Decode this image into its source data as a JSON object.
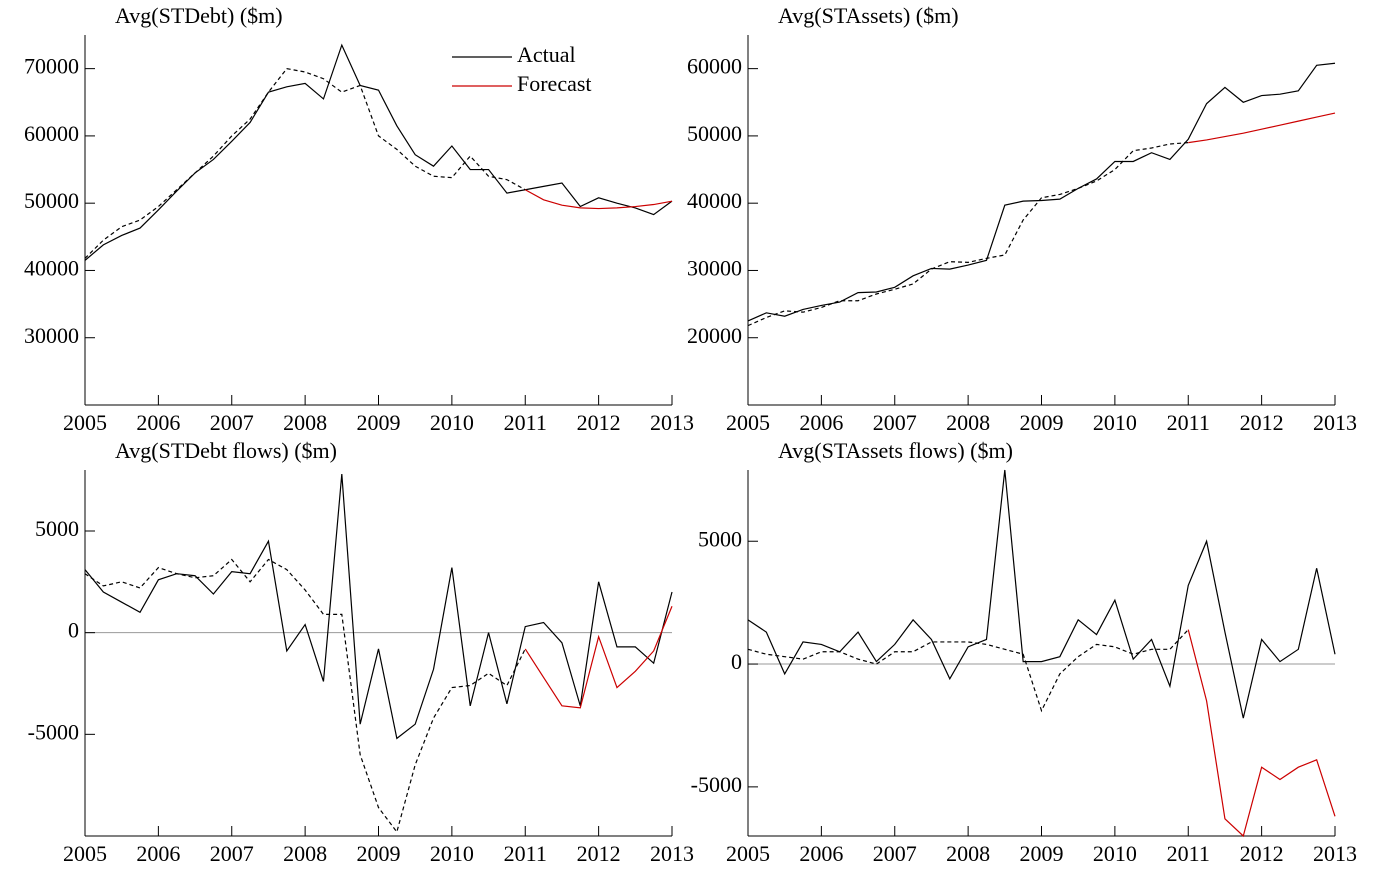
{
  "chart_data": [
    {
      "type": "line",
      "title": "Avg(STDebt) ($m)",
      "x": [
        2005,
        2005.25,
        2005.5,
        2005.75,
        2006,
        2006.25,
        2006.5,
        2006.75,
        2007,
        2007.25,
        2007.5,
        2007.75,
        2008,
        2008.25,
        2008.5,
        2008.75,
        2009,
        2009.25,
        2009.5,
        2009.75,
        2010,
        2010.25,
        2010.5,
        2010.75,
        2011,
        2011.25,
        2011.5,
        2011.75,
        2012,
        2012.25,
        2012.5,
        2012.75,
        2013
      ],
      "xlim": [
        2005,
        2013
      ],
      "xticks": [
        2005,
        2006,
        2007,
        2008,
        2009,
        2010,
        2011,
        2012,
        2013
      ],
      "ylim": [
        20000,
        75000
      ],
      "yticks": [
        30000,
        40000,
        50000,
        60000,
        70000
      ],
      "legend": "top-right",
      "series": [
        {
          "name": "Actual",
          "color": "#000000",
          "values": [
            41500,
            43800,
            45200,
            46300,
            49000,
            51800,
            54500,
            56500,
            59200,
            62000,
            66500,
            67300,
            67800,
            65500,
            73500,
            67500,
            66800,
            61500,
            57200,
            55500,
            58500,
            55000,
            55000,
            51500,
            52000,
            52500,
            53000,
            49500,
            50800,
            50000,
            49300,
            48300,
            50300
          ]
        },
        {
          "color": "#000000",
          "dash": true,
          "values": [
            41800,
            44500,
            46500,
            47500,
            49500,
            52000,
            54500,
            57000,
            60000,
            62500,
            66500,
            70000,
            69500,
            68500,
            66500,
            67500,
            60000,
            58000,
            55500,
            54000,
            53800,
            57000,
            54000,
            53500,
            52000,
            null,
            null,
            null,
            null,
            null,
            null,
            null,
            null
          ]
        },
        {
          "name": "Forecast",
          "color": "#cc0000",
          "values": [
            null,
            null,
            null,
            null,
            null,
            null,
            null,
            null,
            null,
            null,
            null,
            null,
            null,
            null,
            null,
            null,
            null,
            null,
            null,
            null,
            null,
            null,
            null,
            null,
            52000,
            50500,
            49700,
            49300,
            49200,
            49300,
            49500,
            49800,
            50300
          ]
        }
      ]
    },
    {
      "type": "line",
      "title": "Avg(STAssets) ($m)",
      "x": [
        2005,
        2005.25,
        2005.5,
        2005.75,
        2006,
        2006.25,
        2006.5,
        2006.75,
        2007,
        2007.25,
        2007.5,
        2007.75,
        2008,
        2008.25,
        2008.5,
        2008.75,
        2009,
        2009.25,
        2009.5,
        2009.75,
        2010,
        2010.25,
        2010.5,
        2010.75,
        2011,
        2011.25,
        2011.5,
        2011.75,
        2012,
        2012.25,
        2012.5,
        2012.75,
        2013
      ],
      "xlim": [
        2005,
        2013
      ],
      "xticks": [
        2005,
        2006,
        2007,
        2008,
        2009,
        2010,
        2011,
        2012,
        2013
      ],
      "ylim": [
        10000,
        65000
      ],
      "yticks": [
        20000,
        30000,
        40000,
        50000,
        60000
      ],
      "series": [
        {
          "color": "#000000",
          "values": [
            22500,
            23700,
            23200,
            24200,
            24800,
            25300,
            26700,
            26800,
            27500,
            29200,
            30300,
            30200,
            30800,
            31500,
            39700,
            40300,
            40400,
            40600,
            42200,
            43600,
            46200,
            46200,
            47500,
            46500,
            49500,
            54800,
            57200,
            55000,
            56000,
            56200,
            56700,
            60500,
            60800
          ]
        },
        {
          "color": "#000000",
          "dash": true,
          "values": [
            21800,
            23000,
            24000,
            23800,
            24500,
            25500,
            25500,
            26500,
            27200,
            28000,
            30200,
            31300,
            31200,
            31800,
            32300,
            37500,
            40800,
            41300,
            42200,
            43300,
            45000,
            47800,
            48200,
            48800,
            49000,
            null,
            null,
            null,
            null,
            null,
            null,
            null,
            null
          ]
        },
        {
          "color": "#cc0000",
          "values": [
            null,
            null,
            null,
            null,
            null,
            null,
            null,
            null,
            null,
            null,
            null,
            null,
            null,
            null,
            null,
            null,
            null,
            null,
            null,
            null,
            null,
            null,
            null,
            null,
            49000,
            49400,
            49900,
            50400,
            51000,
            51600,
            52200,
            52800,
            53400
          ]
        }
      ]
    },
    {
      "type": "line",
      "title": "Avg(STDebt flows) ($m)",
      "x": [
        2005,
        2005.25,
        2005.5,
        2005.75,
        2006,
        2006.25,
        2006.5,
        2006.75,
        2007,
        2007.25,
        2007.5,
        2007.75,
        2008,
        2008.25,
        2008.5,
        2008.75,
        2009,
        2009.25,
        2009.5,
        2009.75,
        2010,
        2010.25,
        2010.5,
        2010.75,
        2011,
        2011.25,
        2011.5,
        2011.75,
        2012,
        2012.25,
        2012.5,
        2012.75,
        2013
      ],
      "xlim": [
        2005,
        2013
      ],
      "xticks": [
        2005,
        2006,
        2007,
        2008,
        2009,
        2010,
        2011,
        2012,
        2013
      ],
      "ylim": [
        -10000,
        8000
      ],
      "yticks": [
        -5000,
        0,
        5000
      ],
      "hline": 0,
      "series": [
        {
          "color": "#000000",
          "values": [
            3100,
            2000,
            1500,
            1000,
            2600,
            2900,
            2800,
            1900,
            3000,
            2900,
            4500,
            -900,
            400,
            -2400,
            7800,
            -4500,
            -800,
            -5200,
            -4500,
            -1800,
            3200,
            -3600,
            0,
            -3500,
            300,
            500,
            -500,
            -3600,
            2500,
            -700,
            -700,
            -1500,
            2000
          ]
        },
        {
          "color": "#000000",
          "dash": true,
          "values": [
            2900,
            2300,
            2500,
            2200,
            3200,
            2900,
            2700,
            2800,
            3600,
            2500,
            3600,
            3100,
            2100,
            900,
            900,
            -6000,
            -8600,
            -9800,
            -6500,
            -4200,
            -2700,
            -2600,
            -2000,
            -2600,
            -800,
            null,
            null,
            null,
            null,
            null,
            null,
            null,
            null
          ]
        },
        {
          "color": "#cc0000",
          "values": [
            null,
            null,
            null,
            null,
            null,
            null,
            null,
            null,
            null,
            null,
            null,
            null,
            null,
            null,
            null,
            null,
            null,
            null,
            null,
            null,
            null,
            null,
            null,
            null,
            -800,
            -2200,
            -3600,
            -3700,
            -200,
            -2700,
            -1900,
            -900,
            1300
          ]
        }
      ]
    },
    {
      "type": "line",
      "title": "Avg(STAssets flows) ($m)",
      "x": [
        2005,
        2005.25,
        2005.5,
        2005.75,
        2006,
        2006.25,
        2006.5,
        2006.75,
        2007,
        2007.25,
        2007.5,
        2007.75,
        2008,
        2008.25,
        2008.5,
        2008.75,
        2009,
        2009.25,
        2009.5,
        2009.75,
        2010,
        2010.25,
        2010.5,
        2010.75,
        2011,
        2011.25,
        2011.5,
        2011.75,
        2012,
        2012.25,
        2012.5,
        2012.75,
        2013
      ],
      "xlim": [
        2005,
        2013
      ],
      "xticks": [
        2005,
        2006,
        2007,
        2008,
        2009,
        2010,
        2011,
        2012,
        2013
      ],
      "ylim": [
        -7000,
        7900
      ],
      "yticks": [
        -5000,
        0,
        5000
      ],
      "hline": 0,
      "series": [
        {
          "color": "#000000",
          "values": [
            1800,
            1300,
            -400,
            900,
            800,
            500,
            1300,
            100,
            800,
            1800,
            1000,
            -600,
            700,
            1000,
            7900,
            100,
            100,
            300,
            1800,
            1200,
            2600,
            200,
            1000,
            -900,
            3200,
            5000,
            1300,
            -2200,
            1000,
            100,
            600,
            3900,
            400
          ]
        },
        {
          "color": "#000000",
          "dash": true,
          "values": [
            600,
            400,
            300,
            200,
            500,
            500,
            200,
            0,
            500,
            500,
            900,
            900,
            900,
            800,
            600,
            400,
            -1900,
            -400,
            300,
            800,
            700,
            400,
            600,
            600,
            1400,
            null,
            null,
            null,
            null,
            null,
            null,
            null,
            null
          ]
        },
        {
          "color": "#cc0000",
          "values": [
            null,
            null,
            null,
            null,
            null,
            null,
            null,
            null,
            null,
            null,
            null,
            null,
            null,
            null,
            null,
            null,
            null,
            null,
            null,
            null,
            null,
            null,
            null,
            null,
            1400,
            -1500,
            -6300,
            -7000,
            -4200,
            -4700,
            -4200,
            -3900,
            -6200
          ]
        }
      ]
    }
  ]
}
